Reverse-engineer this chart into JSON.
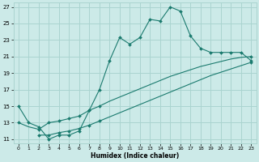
{
  "title": "",
  "xlabel": "Humidex (Indice chaleur)",
  "bg_color": "#cceae8",
  "grid_color": "#aad4d0",
  "line_color": "#1a7a6e",
  "xlim": [
    -0.5,
    23.5
  ],
  "ylim": [
    10.5,
    27.5
  ],
  "yticks": [
    11,
    13,
    15,
    17,
    19,
    21,
    23,
    25,
    27
  ],
  "xticks": [
    0,
    1,
    2,
    3,
    4,
    5,
    6,
    7,
    8,
    9,
    10,
    11,
    12,
    13,
    14,
    15,
    16,
    17,
    18,
    19,
    20,
    21,
    22,
    23
  ],
  "curve1_x": [
    0,
    1,
    2,
    3,
    4,
    5,
    6,
    7,
    8,
    9,
    10,
    11,
    12,
    13,
    14,
    15,
    16,
    17,
    18,
    19,
    20,
    21,
    22,
    23
  ],
  "curve1_y": [
    15,
    13,
    12.5,
    11,
    11.5,
    11.5,
    12,
    14.5,
    17,
    20.5,
    23.3,
    22.5,
    23.3,
    25.5,
    25.3,
    27,
    26.5,
    23.5,
    22,
    21.5,
    21.5,
    21.5,
    21.5,
    20.5
  ],
  "curve2_x": [
    0,
    2,
    3,
    4,
    5,
    6,
    7,
    8,
    23
  ],
  "curve2_y": [
    13,
    12.2,
    13.0,
    13.2,
    13.5,
    13.8,
    14.5,
    15.0,
    21.0
  ],
  "curve2_full_x": [
    0,
    1,
    2,
    3,
    4,
    5,
    6,
    7,
    8,
    9,
    10,
    11,
    12,
    13,
    14,
    15,
    16,
    17,
    18,
    19,
    20,
    21,
    22,
    23
  ],
  "curve2_full_y": [
    13,
    12.5,
    12.2,
    13.0,
    13.2,
    13.5,
    13.8,
    14.5,
    15.0,
    15.6,
    16.1,
    16.6,
    17.1,
    17.6,
    18.1,
    18.6,
    19.0,
    19.4,
    19.8,
    20.1,
    20.4,
    20.7,
    20.9,
    21.0
  ],
  "curve3_full_x": [
    2,
    3,
    4,
    5,
    6,
    7,
    8,
    9,
    10,
    11,
    12,
    13,
    14,
    15,
    16,
    17,
    18,
    19,
    20,
    21,
    22,
    23
  ],
  "curve3_full_y": [
    11.5,
    11.5,
    11.8,
    12.0,
    12.3,
    12.7,
    13.2,
    13.7,
    14.2,
    14.7,
    15.2,
    15.7,
    16.2,
    16.7,
    17.2,
    17.7,
    18.2,
    18.7,
    19.1,
    19.5,
    19.9,
    20.3
  ],
  "curve3_marker_x": [
    2,
    3,
    4,
    5,
    6,
    7,
    8,
    23
  ],
  "curve3_marker_y": [
    11.5,
    11.5,
    11.8,
    12.0,
    12.3,
    12.7,
    13.2,
    20.3
  ]
}
